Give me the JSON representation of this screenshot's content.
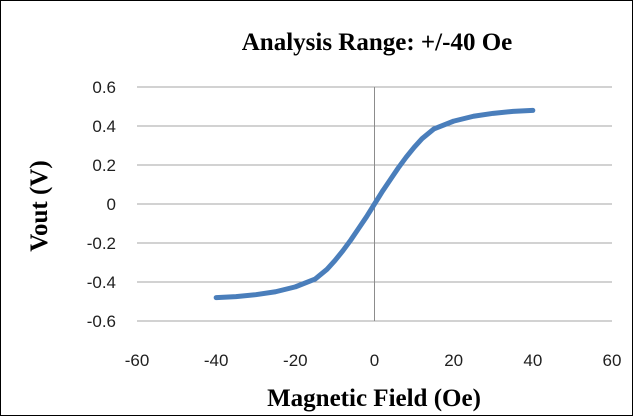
{
  "chart_data": {
    "type": "line",
    "title": "Analysis Range: +/-40 Oe",
    "xlabel": "Magnetic Field (Oe)",
    "ylabel": "Vout (V)",
    "xlim": [
      -60,
      60
    ],
    "ylim": [
      -0.6,
      0.6
    ],
    "xticks": [
      -60,
      -40,
      -20,
      0,
      20,
      40,
      60
    ],
    "yticks": [
      0.6,
      0.4,
      0.2,
      0,
      -0.2,
      -0.4,
      -0.6
    ],
    "xtick_labels": [
      "-60",
      "-40",
      "-20",
      "0",
      "20",
      "40",
      "60"
    ],
    "ytick_labels": [
      "0.6",
      "0.4",
      "0.2",
      "0",
      "-0.2",
      "-0.4",
      "-0.6"
    ],
    "grid": "horizontal",
    "series": [
      {
        "color": "#4a7ebb",
        "x": [
          -40,
          -35,
          -30,
          -25,
          -20,
          -15,
          -12,
          -10,
          -8,
          -6,
          -4,
          -2,
          0,
          2,
          4,
          6,
          8,
          10,
          12,
          15,
          20,
          25,
          30,
          35,
          40
        ],
        "y": [
          -0.48,
          -0.475,
          -0.465,
          -0.45,
          -0.425,
          -0.385,
          -0.335,
          -0.29,
          -0.24,
          -0.185,
          -0.125,
          -0.065,
          0.0,
          0.065,
          0.125,
          0.185,
          0.24,
          0.29,
          0.335,
          0.385,
          0.425,
          0.45,
          0.465,
          0.475,
          0.48
        ]
      }
    ]
  }
}
